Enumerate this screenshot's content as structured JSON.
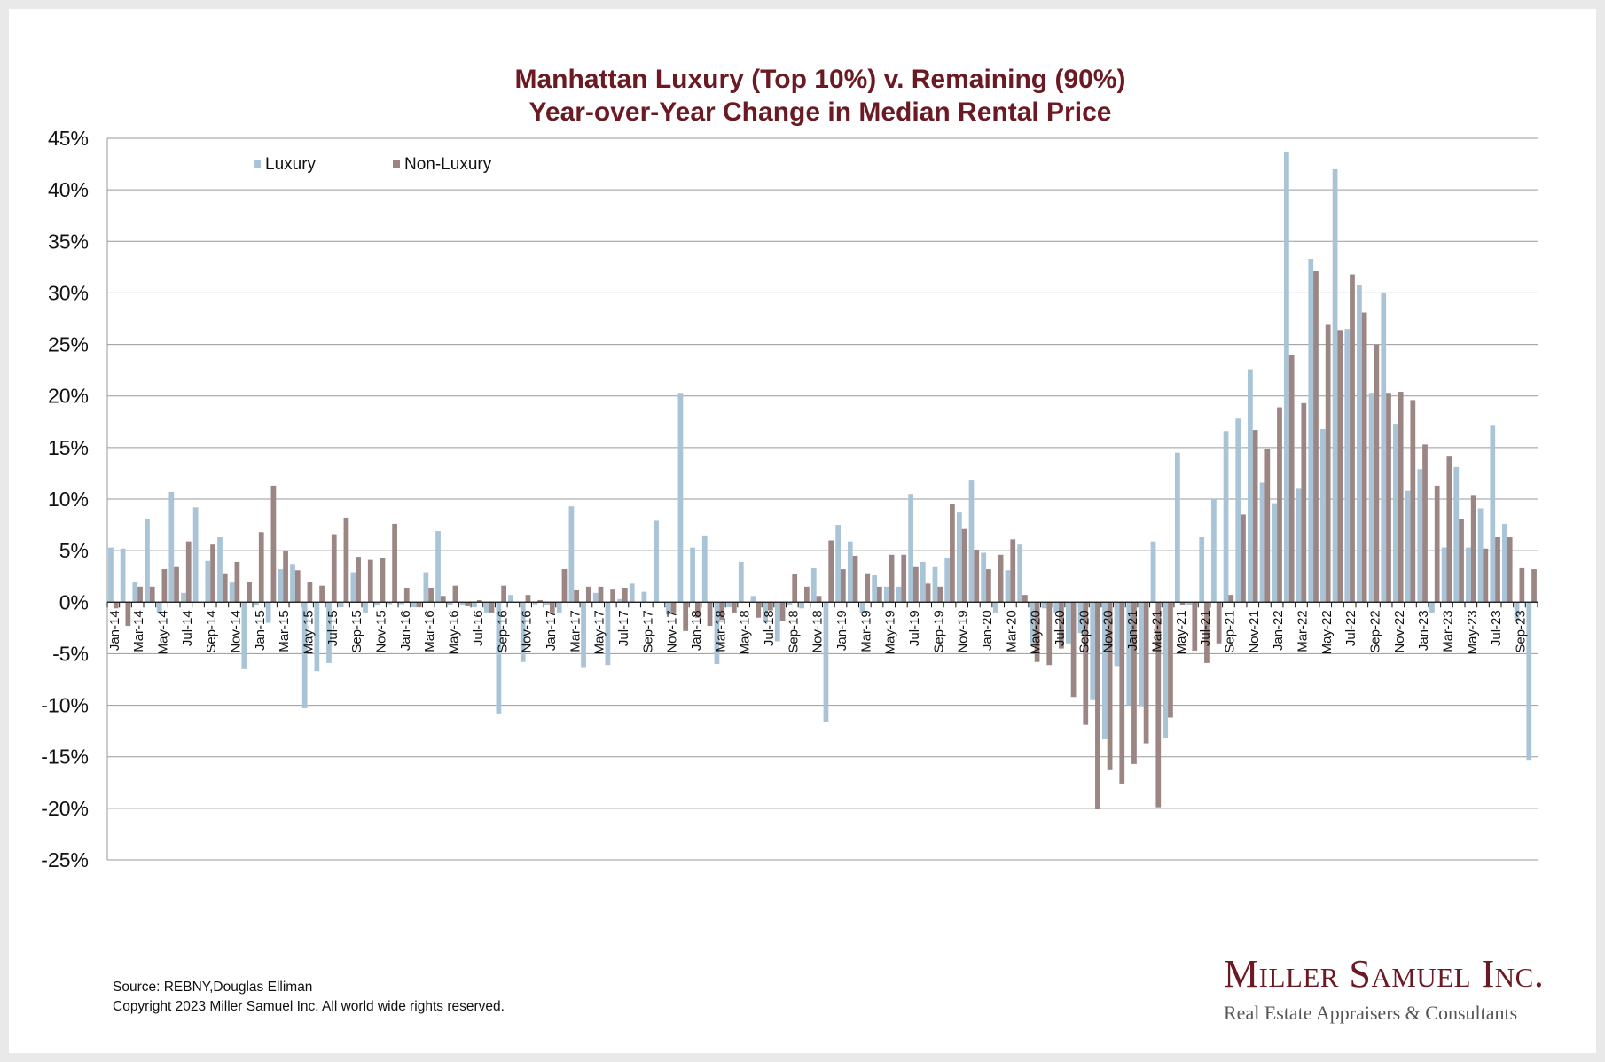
{
  "chart_data": {
    "type": "bar",
    "title": "Manhattan Luxury (Top 10%) v. Remaining (90%)",
    "subtitle": "Year-over-Year Change in Median Rental Price",
    "ylim": [
      -25,
      45
    ],
    "yticks": [
      "-25%",
      "-20%",
      "-15%",
      "-10%",
      "-5%",
      "0%",
      "5%",
      "10%",
      "15%",
      "20%",
      "25%",
      "30%",
      "35%",
      "40%",
      "45%"
    ],
    "grid": true,
    "legend_position": "top-left",
    "x_tick_labels": [
      "Jan-14",
      "Mar-14",
      "May-14",
      "Jul-14",
      "Sep-14",
      "Nov-14",
      "Jan-15",
      "Mar-15",
      "May-15",
      "Jul-15",
      "Sep-15",
      "Nov-15",
      "Jan-16",
      "Mar-16",
      "May-16",
      "Jul-16",
      "Sep-16",
      "Nov-16",
      "Jan-17",
      "Mar-17",
      "May-17",
      "Jul-17",
      "Sep-17",
      "Nov-17",
      "Jan-18",
      "Mar-18",
      "May-18",
      "Jul-18",
      "Sep-18",
      "Nov-18",
      "Jan-19",
      "Mar-19",
      "May-19",
      "Jul-19",
      "Sep-19",
      "Nov-19",
      "Jan-20",
      "Mar-20",
      "May-20",
      "Jul-20",
      "Sep-20",
      "Nov-20",
      "Jan-21",
      "Mar-21",
      "May-21",
      "Jul-21",
      "Sep-21",
      "Nov-21",
      "Jan-22",
      "Mar-22",
      "May-22",
      "Jul-22",
      "Sep-22",
      "Nov-22",
      "Jan-23",
      "Mar-23",
      "May-23",
      "Jul-23",
      "Sep-23"
    ],
    "categories": [
      "Jan-14",
      "Feb-14",
      "Mar-14",
      "Apr-14",
      "May-14",
      "Jun-14",
      "Jul-14",
      "Aug-14",
      "Sep-14",
      "Oct-14",
      "Nov-14",
      "Dec-14",
      "Jan-15",
      "Feb-15",
      "Mar-15",
      "Apr-15",
      "May-15",
      "Jun-15",
      "Jul-15",
      "Aug-15",
      "Sep-15",
      "Oct-15",
      "Nov-15",
      "Dec-15",
      "Jan-16",
      "Feb-16",
      "Mar-16",
      "Apr-16",
      "May-16",
      "Jun-16",
      "Jul-16",
      "Aug-16",
      "Sep-16",
      "Oct-16",
      "Nov-16",
      "Dec-16",
      "Jan-17",
      "Feb-17",
      "Mar-17",
      "Apr-17",
      "May-17",
      "Jun-17",
      "Jul-17",
      "Aug-17",
      "Sep-17",
      "Oct-17",
      "Nov-17",
      "Dec-17",
      "Jan-18",
      "Feb-18",
      "Mar-18",
      "Apr-18",
      "May-18",
      "Jun-18",
      "Jul-18",
      "Aug-18",
      "Sep-18",
      "Oct-18",
      "Nov-18",
      "Dec-18",
      "Jan-19",
      "Feb-19",
      "Mar-19",
      "Apr-19",
      "May-19",
      "Jun-19",
      "Jul-19",
      "Aug-19",
      "Sep-19",
      "Oct-19",
      "Nov-19",
      "Dec-19",
      "Jan-20",
      "Feb-20",
      "Mar-20",
      "Apr-20",
      "May-20",
      "Jun-20",
      "Jul-20",
      "Aug-20",
      "Sep-20",
      "Oct-20",
      "Nov-20",
      "Dec-20",
      "Jan-21",
      "Feb-21",
      "Mar-21",
      "Apr-21",
      "May-21",
      "Jun-21",
      "Jul-21",
      "Aug-21",
      "Sep-21",
      "Oct-21",
      "Nov-21",
      "Dec-21",
      "Jan-22",
      "Feb-22",
      "Mar-22",
      "Apr-22",
      "May-22",
      "Jun-22",
      "Jul-22",
      "Aug-22",
      "Sep-22",
      "Oct-22",
      "Nov-22",
      "Dec-22",
      "Jan-23",
      "Feb-23",
      "Mar-23",
      "Apr-23",
      "May-23",
      "Jun-23",
      "Jul-23",
      "Aug-23",
      "Sep-23",
      "Oct-23"
    ],
    "series": [
      {
        "name": "Luxury",
        "color": "#a9c4d6",
        "values": [
          5.3,
          5.2,
          2.0,
          8.1,
          -1.0,
          10.7,
          0.9,
          9.2,
          4.0,
          6.3,
          1.9,
          -6.5,
          -0.3,
          -2.0,
          3.2,
          3.7,
          -10.3,
          -6.7,
          -5.9,
          -0.5,
          2.9,
          -1.0,
          -0.3,
          -0.2,
          -0.2,
          -0.5,
          2.9,
          6.9,
          -0.3,
          -0.3,
          -0.5,
          -1.0,
          -10.8,
          0.7,
          -5.8,
          -0.2,
          -0.3,
          -1.0,
          9.3,
          -6.3,
          0.9,
          -6.1,
          0.3,
          1.8,
          1.0,
          7.9,
          -1.2,
          20.3,
          5.3,
          6.4,
          -6.0,
          -0.5,
          3.9,
          0.6,
          -2.0,
          -3.8,
          -0.3,
          -0.6,
          3.3,
          -11.6,
          7.5,
          5.9,
          -1.0,
          2.6,
          1.5,
          1.5,
          10.5,
          3.9,
          3.4,
          4.3,
          8.7,
          11.8,
          4.8,
          -1.0,
          3.1,
          5.6,
          -4.0,
          -0.6,
          -1.0,
          -4.0,
          -3.0,
          -9.5,
          -13.3,
          -6.2,
          -10.0,
          -10.1,
          5.9,
          -13.2,
          14.5,
          -0.3,
          6.3,
          10.0,
          16.6,
          17.8,
          22.6,
          11.6,
          9.6,
          43.7,
          11.0,
          33.3,
          16.8,
          42.0,
          26.5,
          30.8,
          20.3,
          30.0,
          17.3,
          10.8,
          12.9,
          -1.0,
          5.3,
          13.1,
          5.3,
          9.1,
          17.2,
          7.6,
          -1.8,
          -15.3
        ]
      },
      {
        "name": "Non-Luxury",
        "color": "#9b8684",
        "values": [
          -0.6,
          -2.3,
          1.5,
          1.5,
          3.2,
          3.4,
          5.9,
          0.0,
          5.6,
          2.8,
          3.9,
          2.0,
          6.8,
          11.3,
          5.0,
          3.1,
          2.0,
          1.6,
          6.6,
          8.2,
          4.4,
          4.1,
          4.3,
          7.6,
          1.4,
          -0.5,
          1.4,
          0.6,
          1.6,
          -0.4,
          0.2,
          -1.0,
          1.6,
          0.0,
          0.7,
          0.2,
          -1.0,
          3.2,
          1.2,
          1.5,
          1.5,
          1.3,
          1.4,
          0.0,
          0.0,
          0.0,
          -1.0,
          -2.8,
          -1.5,
          -2.3,
          -1.7,
          -1.0,
          0.0,
          -1.5,
          -0.8,
          -1.8,
          2.7,
          1.5,
          0.6,
          6.0,
          3.2,
          4.5,
          2.8,
          1.5,
          4.6,
          4.6,
          3.4,
          1.8,
          1.5,
          9.5,
          7.1,
          5.1,
          3.2,
          4.6,
          6.1,
          0.7,
          -5.8,
          -6.1,
          -4.5,
          -9.2,
          -11.9,
          -20.1,
          -16.3,
          -17.6,
          -15.7,
          -13.7,
          -19.9,
          -11.2,
          -0.3,
          -4.7,
          -5.9,
          -4.0,
          0.7,
          8.5,
          16.7,
          14.9,
          18.9,
          24.0,
          19.3,
          32.1,
          26.9,
          26.4,
          31.8,
          28.1,
          25.0,
          20.3,
          20.4,
          19.6,
          15.3,
          11.3,
          14.2,
          8.1,
          10.4,
          5.2,
          6.3,
          6.3,
          3.3,
          3.2
        ]
      }
    ]
  },
  "footer": {
    "source": "Source: REBNY,Douglas Elliman",
    "copyright": "Copyright 2023 Miller Samuel Inc.  All world wide rights reserved."
  },
  "logo": {
    "name": "Miller Samuel Inc.",
    "tagline": "Real Estate Appraisers & Consultants"
  }
}
